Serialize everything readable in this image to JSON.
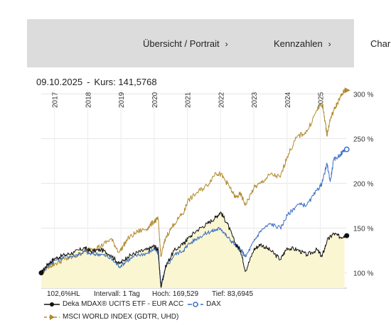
{
  "nav": {
    "items": [
      {
        "label": "Übersicht / Portrait",
        "chevron": "chevron-right-icon"
      },
      {
        "label": "Kennzahlen",
        "chevron": "chevron-right-icon"
      },
      {
        "label": "Char"
      }
    ]
  },
  "quote": {
    "date": "09.10.2025",
    "separator": "-",
    "label": "Kurs:",
    "value": "141,5768"
  },
  "stats": {
    "scale": "102,6%HL",
    "interval": "Intervall: 1 Tag",
    "high": "Hoch: 169,529",
    "low": "Tief: 83,6945"
  },
  "chart_data": {
    "type": "line",
    "x_ticks": [
      "2017",
      "2018",
      "2019",
      "2020",
      "2021",
      "2022",
      "2023",
      "2024",
      "2025"
    ],
    "y_ticks": [
      "100 %",
      "150 %",
      "200 %",
      "250 %",
      "300 %"
    ],
    "ylim": [
      83,
      305
    ],
    "xlim": [
      2016.6,
      2025.8
    ],
    "legend_position": "bottom-left",
    "series": [
      {
        "name": "Deka MDAX® UCITS ETF - EUR ACC",
        "color": "#111111",
        "dash": "solid",
        "marker": "circle",
        "points": [
          [
            2016.6,
            100
          ],
          [
            2016.8,
            110
          ],
          [
            2017.0,
            116
          ],
          [
            2017.3,
            120
          ],
          [
            2017.6,
            123
          ],
          [
            2017.9,
            128
          ],
          [
            2018.1,
            124
          ],
          [
            2018.4,
            126
          ],
          [
            2018.7,
            120
          ],
          [
            2018.95,
            110
          ],
          [
            2019.2,
            118
          ],
          [
            2019.5,
            123
          ],
          [
            2019.8,
            126
          ],
          [
            2020.0,
            130
          ],
          [
            2020.12,
            126
          ],
          [
            2020.2,
            84
          ],
          [
            2020.35,
            108
          ],
          [
            2020.6,
            125
          ],
          [
            2020.9,
            133
          ],
          [
            2021.0,
            138
          ],
          [
            2021.3,
            148
          ],
          [
            2021.6,
            155
          ],
          [
            2021.85,
            162
          ],
          [
            2022.0,
            168
          ],
          [
            2022.2,
            155
          ],
          [
            2022.45,
            132
          ],
          [
            2022.6,
            125
          ],
          [
            2022.75,
            102
          ],
          [
            2023.0,
            126
          ],
          [
            2023.2,
            132
          ],
          [
            2023.5,
            125
          ],
          [
            2023.8,
            115
          ],
          [
            2024.0,
            128
          ],
          [
            2024.3,
            126
          ],
          [
            2024.6,
            120
          ],
          [
            2024.9,
            126
          ],
          [
            2025.05,
            118
          ],
          [
            2025.2,
            136
          ],
          [
            2025.4,
            144
          ],
          [
            2025.6,
            140
          ],
          [
            2025.73,
            141.6
          ]
        ]
      },
      {
        "name": "DAX",
        "color": "#3a6fc4",
        "dash": "longdash",
        "marker": "ring",
        "points": [
          [
            2016.6,
            100
          ],
          [
            2016.8,
            108
          ],
          [
            2017.0,
            114
          ],
          [
            2017.3,
            118
          ],
          [
            2017.6,
            119
          ],
          [
            2017.9,
            124
          ],
          [
            2018.1,
            121
          ],
          [
            2018.4,
            121
          ],
          [
            2018.7,
            116
          ],
          [
            2018.95,
            107
          ],
          [
            2019.2,
            114
          ],
          [
            2019.5,
            120
          ],
          [
            2019.8,
            122
          ],
          [
            2020.0,
            127
          ],
          [
            2020.12,
            122
          ],
          [
            2020.2,
            86
          ],
          [
            2020.35,
            106
          ],
          [
            2020.6,
            120
          ],
          [
            2020.9,
            126
          ],
          [
            2021.0,
            131
          ],
          [
            2021.3,
            139
          ],
          [
            2021.6,
            145
          ],
          [
            2021.85,
            148
          ],
          [
            2022.0,
            150
          ],
          [
            2022.2,
            140
          ],
          [
            2022.45,
            131
          ],
          [
            2022.6,
            126
          ],
          [
            2022.75,
            118
          ],
          [
            2023.0,
            135
          ],
          [
            2023.2,
            147
          ],
          [
            2023.5,
            155
          ],
          [
            2023.8,
            150
          ],
          [
            2024.0,
            164
          ],
          [
            2024.3,
            176
          ],
          [
            2024.6,
            176
          ],
          [
            2024.9,
            192
          ],
          [
            2025.05,
            200
          ],
          [
            2025.2,
            222
          ],
          [
            2025.3,
            202
          ],
          [
            2025.4,
            226
          ],
          [
            2025.6,
            232
          ],
          [
            2025.73,
            238
          ]
        ]
      },
      {
        "name": "MSCI WORLD INDEX (GDTR, UHD)",
        "color": "#b08a2e",
        "dash": "dash",
        "marker": "triangle",
        "points": [
          [
            2016.6,
            100
          ],
          [
            2016.8,
            107
          ],
          [
            2017.0,
            110
          ],
          [
            2017.3,
            115
          ],
          [
            2017.6,
            118
          ],
          [
            2017.9,
            124
          ],
          [
            2018.1,
            127
          ],
          [
            2018.4,
            130
          ],
          [
            2018.7,
            138
          ],
          [
            2018.95,
            123
          ],
          [
            2019.2,
            138
          ],
          [
            2019.5,
            146
          ],
          [
            2019.8,
            150
          ],
          [
            2020.0,
            158
          ],
          [
            2020.12,
            160
          ],
          [
            2020.2,
            118
          ],
          [
            2020.35,
            140
          ],
          [
            2020.6,
            155
          ],
          [
            2020.9,
            168
          ],
          [
            2021.0,
            180
          ],
          [
            2021.3,
            190
          ],
          [
            2021.6,
            198
          ],
          [
            2021.85,
            212
          ],
          [
            2022.0,
            210
          ],
          [
            2022.2,
            200
          ],
          [
            2022.45,
            184
          ],
          [
            2022.6,
            188
          ],
          [
            2022.75,
            176
          ],
          [
            2023.0,
            195
          ],
          [
            2023.2,
            200
          ],
          [
            2023.5,
            210
          ],
          [
            2023.8,
            207
          ],
          [
            2024.0,
            230
          ],
          [
            2024.3,
            252
          ],
          [
            2024.6,
            258
          ],
          [
            2024.9,
            282
          ],
          [
            2025.05,
            290
          ],
          [
            2025.15,
            268
          ],
          [
            2025.2,
            254
          ],
          [
            2025.3,
            272
          ],
          [
            2025.45,
            285
          ],
          [
            2025.6,
            296
          ],
          [
            2025.73,
            304
          ]
        ]
      }
    ]
  }
}
